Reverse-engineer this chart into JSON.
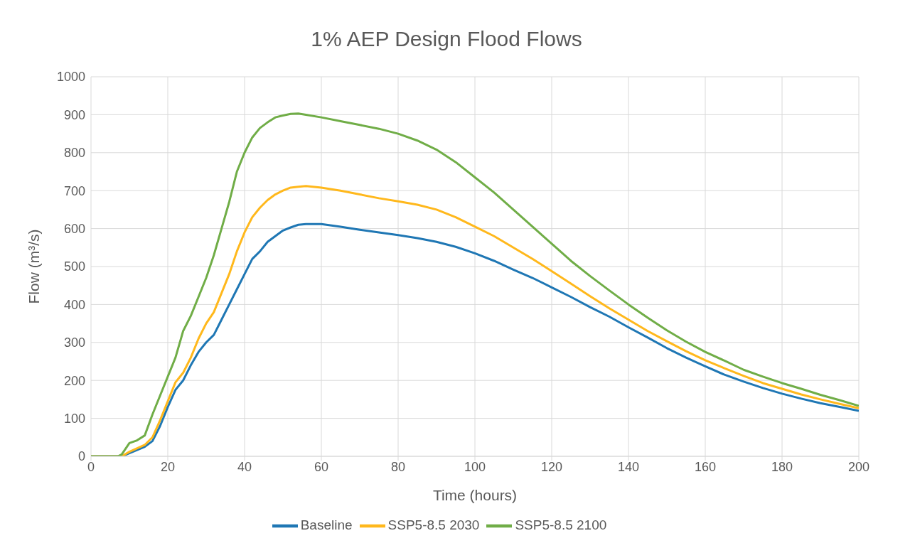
{
  "chart_data": {
    "type": "line",
    "title": "1% AEP Design Flood Flows",
    "xlabel": "Time (hours)",
    "ylabel": "Flow (m³/s)",
    "xlim": [
      0,
      200
    ],
    "xticks": [
      0,
      20,
      40,
      60,
      80,
      100,
      120,
      140,
      160,
      180,
      200
    ],
    "ylim": [
      0,
      1000
    ],
    "yticks": [
      0,
      100,
      200,
      300,
      400,
      500,
      600,
      700,
      800,
      900,
      1000
    ],
    "grid": true,
    "legend": "bottom",
    "marker": "none",
    "line_style": "solid",
    "series": [
      {
        "name": "Baseline",
        "color": "#1f77b4",
        "x": [
          0,
          8,
          10,
          14,
          16,
          18,
          20,
          22,
          24,
          26,
          28,
          30,
          32,
          34,
          36,
          38,
          40,
          42,
          44,
          46,
          48,
          50,
          52,
          54,
          56,
          60,
          65,
          70,
          75,
          80,
          85,
          90,
          95,
          100,
          105,
          110,
          115,
          120,
          125,
          130,
          135,
          140,
          145,
          150,
          155,
          160,
          165,
          170,
          175,
          180,
          185,
          190,
          195,
          200
        ],
        "values": [
          0,
          0,
          8,
          25,
          40,
          80,
          130,
          175,
          200,
          240,
          275,
          300,
          320,
          360,
          400,
          440,
          480,
          520,
          540,
          565,
          580,
          595,
          603,
          610,
          612,
          612,
          605,
          597,
          590,
          583,
          575,
          565,
          552,
          535,
          515,
          492,
          470,
          445,
          420,
          393,
          368,
          340,
          313,
          285,
          260,
          237,
          215,
          197,
          180,
          165,
          152,
          140,
          130,
          120
        ]
      },
      {
        "name": "SSP5-8.5 2030",
        "color": "#ffb81c",
        "x": [
          0,
          8,
          10,
          14,
          16,
          18,
          20,
          22,
          24,
          26,
          28,
          30,
          32,
          34,
          36,
          38,
          40,
          42,
          44,
          46,
          48,
          50,
          52,
          54,
          56,
          60,
          65,
          70,
          75,
          80,
          85,
          90,
          95,
          100,
          105,
          110,
          115,
          120,
          125,
          130,
          135,
          140,
          145,
          150,
          155,
          160,
          165,
          170,
          175,
          180,
          185,
          190,
          195,
          200
        ],
        "values": [
          0,
          0,
          12,
          30,
          50,
          95,
          145,
          195,
          220,
          260,
          310,
          350,
          380,
          430,
          480,
          540,
          590,
          630,
          655,
          675,
          690,
          700,
          708,
          710,
          712,
          708,
          700,
          690,
          680,
          672,
          663,
          650,
          630,
          605,
          580,
          550,
          520,
          488,
          455,
          422,
          390,
          360,
          330,
          303,
          277,
          253,
          232,
          212,
          193,
          178,
          163,
          150,
          138,
          127
        ]
      },
      {
        "name": "SSP5-8.5 2100",
        "color": "#70ad47",
        "x": [
          0,
          7,
          8,
          10,
          12,
          14,
          16,
          18,
          20,
          22,
          24,
          26,
          28,
          30,
          32,
          34,
          36,
          38,
          40,
          42,
          44,
          46,
          48,
          50,
          52,
          54,
          56,
          60,
          65,
          70,
          75,
          80,
          85,
          90,
          95,
          100,
          105,
          110,
          115,
          120,
          125,
          130,
          135,
          140,
          145,
          150,
          155,
          160,
          165,
          170,
          175,
          180,
          185,
          190,
          195,
          200
        ],
        "values": [
          0,
          0,
          5,
          35,
          42,
          55,
          110,
          160,
          210,
          260,
          330,
          370,
          420,
          470,
          530,
          600,
          670,
          750,
          800,
          840,
          865,
          880,
          893,
          898,
          902,
          903,
          900,
          893,
          883,
          873,
          863,
          850,
          832,
          808,
          775,
          735,
          695,
          650,
          605,
          560,
          515,
          475,
          437,
          400,
          365,
          332,
          302,
          275,
          252,
          228,
          210,
          193,
          178,
          162,
          148,
          133
        ]
      }
    ]
  }
}
